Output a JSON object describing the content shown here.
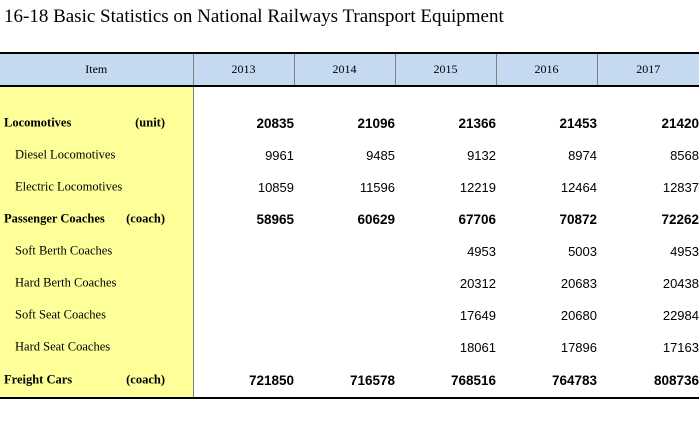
{
  "title": "16-18  Basic Statistics on National Railways Transport Equipment",
  "header": {
    "item": "Item",
    "years": [
      "2013",
      "2014",
      "2015",
      "2016",
      "2017"
    ]
  },
  "rows": [
    {
      "name": "Locomotives",
      "unit": "(unit)",
      "values": [
        "20835",
        "21096",
        "21366",
        "21453",
        "21420"
      ]
    },
    {
      "name": "Diesel Locomotives",
      "unit": "",
      "values": [
        "9961",
        "9485",
        "9132",
        "8974",
        "8568"
      ]
    },
    {
      "name": "Electric Locomotives",
      "unit": "",
      "values": [
        "10859",
        "11596",
        "12219",
        "12464",
        "12837"
      ]
    },
    {
      "name": "Passenger Coaches",
      "unit": "(coach)",
      "values": [
        "58965",
        "60629",
        "67706",
        "70872",
        "72262"
      ]
    },
    {
      "name": "Soft Berth Coaches",
      "unit": "",
      "values": [
        "",
        "",
        "4953",
        "5003",
        "4953"
      ]
    },
    {
      "name": "Hard Berth Coaches",
      "unit": "",
      "values": [
        "",
        "",
        "20312",
        "20683",
        "20438"
      ]
    },
    {
      "name": "Soft Seat Coaches",
      "unit": "",
      "values": [
        "",
        "",
        "17649",
        "20680",
        "22984"
      ]
    },
    {
      "name": "Hard Seat Coaches",
      "unit": "",
      "values": [
        "",
        "",
        "18061",
        "17896",
        "17163"
      ]
    },
    {
      "name": "Freight Cars",
      "unit": "(coach)",
      "values": [
        "721850",
        "716578",
        "768516",
        "764783",
        "808736"
      ]
    }
  ]
}
